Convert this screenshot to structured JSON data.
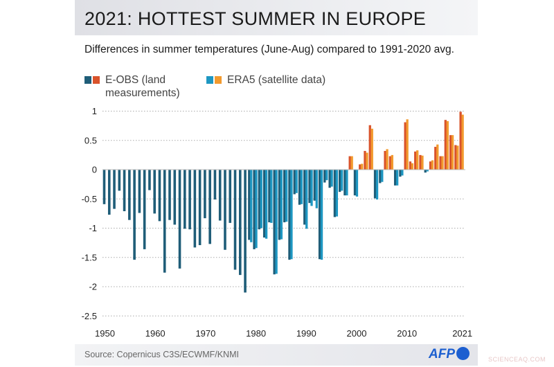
{
  "title": "2021: HOTTEST SUMMER IN EUROPE",
  "subtitle": "Differences in summer temperatures (June-Aug) compared to 1991-2020 avg.",
  "legend": [
    {
      "label": "E-OBS (land measurements)",
      "colors": [
        "#1f5d78",
        "#d9532b"
      ]
    },
    {
      "label": "ERA5 (satellite data)",
      "colors": [
        "#1e97c2",
        "#f29a2e"
      ]
    }
  ],
  "source": "Source: Copernicus C3S/ECWMF/KNMI",
  "logo": "AFP",
  "watermark": "SCIENCEAQ.COM",
  "chart_data": {
    "type": "bar",
    "title": "2021: HOTTEST SUMMER IN EUROPE",
    "ylabel": "",
    "xlabel": "",
    "ylim": [
      -2.5,
      1
    ],
    "yticks": [
      "1",
      "0.5",
      "0",
      "-0.5",
      "-1",
      "-1.5",
      "-2",
      "-2.5"
    ],
    "ytick_values": [
      1,
      0.5,
      0,
      -0.5,
      -1,
      -1.5,
      -2,
      -2.5
    ],
    "xticks": [
      "1950",
      "1960",
      "1970",
      "1980",
      "1990",
      "2000",
      "2010",
      "2021"
    ],
    "xtick_values": [
      1950,
      1960,
      1970,
      1980,
      1990,
      2000,
      2010,
      2021
    ],
    "grid": "horizontal dotted",
    "legend_placement": "top-left",
    "colors": {
      "eobs_neg": "#1f5d78",
      "eobs_pos": "#d9532b",
      "era5_neg": "#1e97c2",
      "era5_pos": "#f29a2e"
    },
    "x": [
      1950,
      1951,
      1952,
      1953,
      1954,
      1955,
      1956,
      1957,
      1958,
      1959,
      1960,
      1961,
      1962,
      1963,
      1964,
      1965,
      1966,
      1967,
      1968,
      1969,
      1970,
      1971,
      1972,
      1973,
      1974,
      1975,
      1976,
      1977,
      1978,
      1979,
      1980,
      1981,
      1982,
      1983,
      1984,
      1985,
      1986,
      1987,
      1988,
      1989,
      1990,
      1991,
      1992,
      1993,
      1994,
      1995,
      1996,
      1997,
      1998,
      1999,
      2000,
      2001,
      2002,
      2003,
      2004,
      2005,
      2006,
      2007,
      2008,
      2009,
      2010,
      2011,
      2012,
      2013,
      2014,
      2015,
      2016,
      2017,
      2018,
      2019,
      2020,
      2021
    ],
    "series": [
      {
        "name": "E-OBS (land measurements)",
        "values": [
          -0.59,
          -0.77,
          -0.67,
          -0.36,
          -0.71,
          -0.86,
          -1.54,
          -0.74,
          -1.36,
          -0.35,
          -0.75,
          -0.88,
          -1.76,
          -0.86,
          -0.94,
          -1.69,
          -1.01,
          -1.02,
          -1.33,
          -1.29,
          -0.83,
          -1.27,
          -0.51,
          -0.87,
          -1.37,
          -0.91,
          -1.71,
          -1.8,
          -2.1,
          -1.2,
          -1.36,
          -1.02,
          -1.16,
          -0.9,
          -1.79,
          -1.2,
          -0.9,
          -1.54,
          -0.42,
          -0.6,
          -0.94,
          -0.57,
          -0.53,
          -1.53,
          -0.22,
          -0.31,
          -0.81,
          -0.38,
          -0.44,
          0.23,
          -0.44,
          0.09,
          0.32,
          0.76,
          -0.49,
          -0.23,
          0.32,
          0.23,
          -0.27,
          -0.12,
          0.81,
          0.14,
          0.31,
          0.25,
          -0.05,
          0.14,
          0.39,
          0.23,
          0.85,
          0.59,
          0.42,
          0.99
        ]
      },
      {
        "name": "ERA5 (satellite data)",
        "values": [
          null,
          null,
          null,
          null,
          null,
          null,
          null,
          null,
          null,
          null,
          null,
          null,
          null,
          null,
          null,
          null,
          null,
          null,
          null,
          null,
          null,
          null,
          null,
          null,
          null,
          null,
          null,
          null,
          null,
          -1.24,
          -1.34,
          -1.0,
          -1.18,
          -0.91,
          -1.78,
          -1.19,
          -0.89,
          -1.53,
          -0.4,
          -0.59,
          -1.01,
          -0.62,
          -0.66,
          -1.54,
          -0.18,
          -0.29,
          -0.8,
          -0.36,
          -0.44,
          0.23,
          -0.46,
          0.1,
          0.29,
          0.7,
          -0.51,
          -0.21,
          0.35,
          0.25,
          -0.27,
          -0.1,
          0.86,
          0.11,
          0.33,
          0.24,
          -0.03,
          0.16,
          0.43,
          0.23,
          0.83,
          0.59,
          0.41,
          0.94
        ]
      }
    ]
  }
}
